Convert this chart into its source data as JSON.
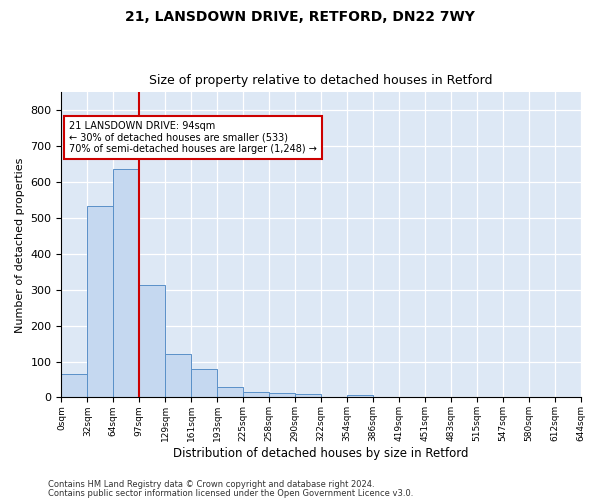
{
  "title1": "21, LANSDOWN DRIVE, RETFORD, DN22 7WY",
  "title2": "Size of property relative to detached houses in Retford",
  "xlabel": "Distribution of detached houses by size in Retford",
  "ylabel": "Number of detached properties",
  "bar_values": [
    65,
    533,
    637,
    312,
    120,
    78,
    30,
    15,
    11,
    10,
    0,
    8,
    0,
    0,
    0,
    0,
    0,
    0,
    0,
    0
  ],
  "bin_labels": [
    "0sqm",
    "32sqm",
    "64sqm",
    "97sqm",
    "129sqm",
    "161sqm",
    "193sqm",
    "225sqm",
    "258sqm",
    "290sqm",
    "322sqm",
    "354sqm",
    "386sqm",
    "419sqm",
    "451sqm",
    "483sqm",
    "515sqm",
    "547sqm",
    "580sqm",
    "612sqm",
    "644sqm"
  ],
  "bar_color": "#c5d8f0",
  "bar_edge_color": "#5a90c8",
  "property_line_x": 3.0,
  "property_line_color": "#cc0000",
  "annotation_text": "21 LANSDOWN DRIVE: 94sqm\n← 30% of detached houses are smaller (533)\n70% of semi-detached houses are larger (1,248) →",
  "annotation_box_color": "#ffffff",
  "annotation_box_edge": "#cc0000",
  "ylim": [
    0,
    850
  ],
  "yticks": [
    0,
    100,
    200,
    300,
    400,
    500,
    600,
    700,
    800
  ],
  "bg_color": "#dde8f5",
  "footer1": "Contains HM Land Registry data © Crown copyright and database right 2024.",
  "footer2": "Contains public sector information licensed under the Open Government Licence v3.0."
}
